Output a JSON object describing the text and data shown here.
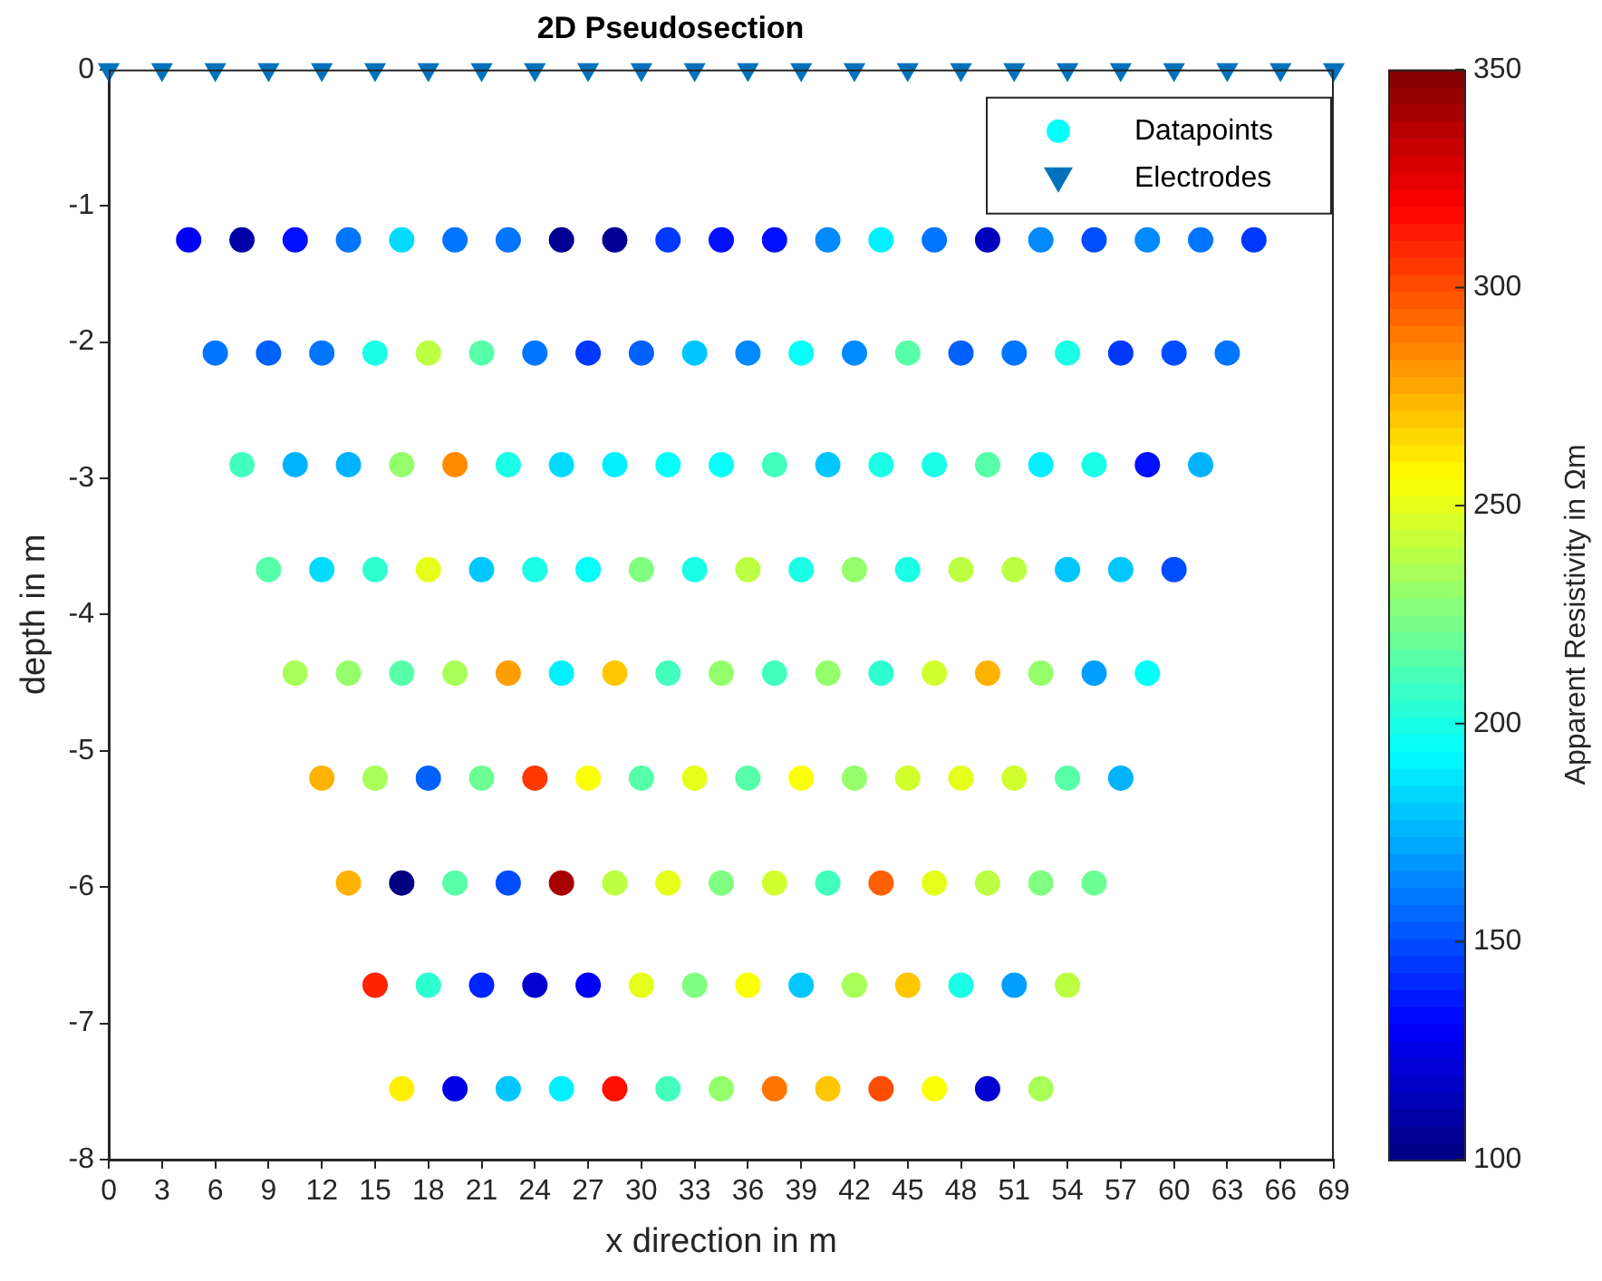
{
  "chart_data": {
    "type": "scatter",
    "title": "2D Pseudosection",
    "xlabel": "x direction in m",
    "ylabel": "depth in m",
    "clabel": "Apparent Resistivity in Ωm",
    "xlim": [
      0,
      69
    ],
    "xticks": [
      0,
      3,
      6,
      9,
      12,
      15,
      18,
      21,
      24,
      27,
      30,
      33,
      36,
      39,
      42,
      45,
      48,
      51,
      54,
      57,
      60,
      63,
      66,
      69
    ],
    "ylim": [
      -8,
      0
    ],
    "yticks": [
      -8,
      -7,
      -6,
      -5,
      -4,
      -3,
      -2,
      -1,
      0
    ],
    "clim": [
      100,
      350
    ],
    "cticks": [
      100,
      150,
      200,
      250,
      300,
      350
    ],
    "grid": false,
    "legend": "top right",
    "series": [
      {
        "name": "Datapoints",
        "type": "scatter",
        "marker": "circle",
        "color": "#00ffff",
        "colors": [
          "#0000fa",
          "#0000a8",
          "#000fff",
          "#0075ff",
          "#00dbff",
          "#0075ff",
          "#0075ff",
          "#000094",
          "#000094",
          "#0038ff",
          "#000fff",
          "#000fff",
          "#008aff",
          "#00f0ff",
          "#0075ff",
          "#0000bd",
          "#008aff",
          "#004dff",
          "#008aff",
          "#0075ff",
          "#0038ff",
          "#0075ff",
          "#0061ff",
          "#0075ff",
          "#1affe6",
          "#bdff42",
          "#57ffa8",
          "#0075ff",
          "#0038ff",
          "#0061ff",
          "#00c7ff",
          "#008aff",
          "#05fffa",
          "#008aff",
          "#57ffa8",
          "#0061ff",
          "#0075ff",
          "#1affe6",
          "#0038ff",
          "#004dff",
          "#0075ff",
          "#42ffbd",
          "#00b3ff",
          "#00b3ff",
          "#94ff6b",
          "#ff8a00",
          "#1affe6",
          "#00dbff",
          "#00f0ff",
          "#05fffa",
          "#05fffa",
          "#42ffbd",
          "#00c7ff",
          "#1affe6",
          "#1affe6",
          "#57ffa8",
          "#00f0ff",
          "#1affe6",
          "#000fff",
          "#00b3ff",
          "#57ffa8",
          "#00dbff",
          "#2effd1",
          "#e6ff1a",
          "#00c7ff",
          "#1affe6",
          "#05fffa",
          "#80ff80",
          "#1affe6",
          "#bdff42",
          "#1affe6",
          "#94ff6b",
          "#1affe6",
          "#bdff42",
          "#bdff42",
          "#00c7ff",
          "#00c7ff",
          "#004dff",
          "#a8ff57",
          "#94ff6b",
          "#57ffa8",
          "#a8ff57",
          "#ff9e00",
          "#00f0ff",
          "#ffc700",
          "#42ffbd",
          "#94ff6b",
          "#42ffbd",
          "#94ff6b",
          "#2effd1",
          "#d1ff2e",
          "#ffb300",
          "#94ff6b",
          "#009eff",
          "#05fffa",
          "#ffb300",
          "#a8ff57",
          "#0061ff",
          "#6bff94",
          "#ff3800",
          "#faff05",
          "#57ffa8",
          "#e6ff1a",
          "#57ffa8",
          "#faff05",
          "#94ff6b",
          "#d1ff2e",
          "#e6ff1a",
          "#d1ff2e",
          "#57ffa8",
          "#00b3ff",
          "#ffb300",
          "#000080",
          "#57ffa8",
          "#004dff",
          "#a80000",
          "#bdff42",
          "#e6ff1a",
          "#80ff80",
          "#d1ff2e",
          "#42ffbd",
          "#ff6100",
          "#e6ff1a",
          "#bdff42",
          "#80ff80",
          "#6bff94",
          "#ff2400",
          "#2effd1",
          "#0024ff",
          "#0000d1",
          "#0000fa",
          "#e6ff1a",
          "#80ff80",
          "#faff05",
          "#00c7ff",
          "#a8ff57",
          "#ffc700",
          "#1affe6",
          "#009eff",
          "#bdff42",
          "#fff000",
          "#0000e6",
          "#00c7ff",
          "#00f0ff",
          "#ff0f00",
          "#42ffbd",
          "#94ff6b",
          "#ff7500",
          "#ffc700",
          "#ff4d00",
          "#faff05",
          "#0000d1",
          "#a8ff57"
        ],
        "x": [
          4.5,
          7.5,
          10.5,
          13.5,
          16.5,
          19.5,
          22.5,
          25.5,
          28.5,
          31.5,
          34.5,
          37.5,
          40.5,
          43.5,
          46.5,
          49.5,
          52.5,
          55.5,
          58.5,
          61.5,
          64.5,
          6,
          9,
          12,
          15,
          18,
          21,
          24,
          27,
          30,
          33,
          36,
          39,
          42,
          45,
          48,
          51,
          54,
          57,
          60,
          63,
          7.5,
          10.5,
          13.5,
          16.5,
          19.5,
          22.5,
          25.5,
          28.5,
          31.5,
          34.5,
          37.5,
          40.5,
          43.5,
          46.5,
          49.5,
          52.5,
          55.5,
          58.5,
          61.5,
          9,
          12,
          15,
          18,
          21,
          24,
          27,
          30,
          33,
          36,
          39,
          42,
          45,
          48,
          51,
          54,
          57,
          60,
          10.5,
          13.5,
          16.5,
          19.5,
          22.5,
          25.5,
          28.5,
          31.5,
          34.5,
          37.5,
          40.5,
          43.5,
          46.5,
          49.5,
          52.5,
          55.5,
          58.5,
          12,
          15,
          18,
          21,
          24,
          27,
          30,
          33,
          36,
          39,
          42,
          45,
          48,
          51,
          54,
          57,
          13.5,
          16.5,
          19.5,
          22.5,
          25.5,
          28.5,
          31.5,
          34.5,
          37.5,
          40.5,
          43.5,
          46.5,
          49.5,
          52.5,
          55.5,
          15,
          18,
          21,
          24,
          27,
          30,
          33,
          36,
          39,
          42,
          45,
          48,
          51,
          54,
          16.5,
          19.5,
          22.5,
          25.5,
          28.5,
          31.5,
          34.5,
          37.5,
          40.5,
          43.5,
          46.5,
          49.5,
          52.5
        ],
        "values": [
          -1.25,
          -1.25,
          -1.25,
          -1.25,
          -1.25,
          -1.25,
          -1.25,
          -1.25,
          -1.25,
          -1.25,
          -1.25,
          -1.25,
          -1.25,
          -1.25,
          -1.25,
          -1.25,
          -1.25,
          -1.25,
          -1.25,
          -1.25,
          -1.25,
          -2.08,
          -2.08,
          -2.08,
          -2.08,
          -2.08,
          -2.08,
          -2.08,
          -2.08,
          -2.08,
          -2.08,
          -2.08,
          -2.08,
          -2.08,
          -2.08,
          -2.08,
          -2.08,
          -2.08,
          -2.08,
          -2.08,
          -2.08,
          -2.9,
          -2.9,
          -2.9,
          -2.9,
          -2.9,
          -2.9,
          -2.9,
          -2.9,
          -2.9,
          -2.9,
          -2.9,
          -2.9,
          -2.9,
          -2.9,
          -2.9,
          -2.9,
          -2.9,
          -2.9,
          -2.9,
          -3.67,
          -3.67,
          -3.67,
          -3.67,
          -3.67,
          -3.67,
          -3.67,
          -3.67,
          -3.67,
          -3.67,
          -3.67,
          -3.67,
          -3.67,
          -3.67,
          -3.67,
          -3.67,
          -3.67,
          -3.67,
          -4.43,
          -4.43,
          -4.43,
          -4.43,
          -4.43,
          -4.43,
          -4.43,
          -4.43,
          -4.43,
          -4.43,
          -4.43,
          -4.43,
          -4.43,
          -4.43,
          -4.43,
          -4.43,
          -4.43,
          -5.2,
          -5.2,
          -5.2,
          -5.2,
          -5.2,
          -5.2,
          -5.2,
          -5.2,
          -5.2,
          -5.2,
          -5.2,
          -5.2,
          -5.2,
          -5.2,
          -5.2,
          -5.2,
          -5.97,
          -5.97,
          -5.97,
          -5.97,
          -5.97,
          -5.97,
          -5.97,
          -5.97,
          -5.97,
          -5.97,
          -5.97,
          -5.97,
          -5.97,
          -5.97,
          -5.97,
          -6.72,
          -6.72,
          -6.72,
          -6.72,
          -6.72,
          -6.72,
          -6.72,
          -6.72,
          -6.72,
          -6.72,
          -6.72,
          -6.72,
          -6.72,
          -6.72,
          -7.48,
          -7.48,
          -7.48,
          -7.48,
          -7.48,
          -7.48,
          -7.48,
          -7.48,
          -7.48,
          -7.48,
          -7.48,
          -7.48,
          -7.48
        ],
        "cvalues": [
          130,
          110,
          135,
          160,
          185,
          160,
          160,
          105,
          105,
          145,
          135,
          135,
          165,
          190,
          160,
          115,
          165,
          150,
          165,
          160,
          145,
          160,
          155,
          160,
          200,
          240,
          215,
          160,
          145,
          155,
          180,
          165,
          195,
          165,
          215,
          155,
          160,
          200,
          145,
          150,
          160,
          210,
          175,
          175,
          230,
          285,
          200,
          185,
          190,
          195,
          195,
          210,
          180,
          200,
          200,
          215,
          190,
          200,
          135,
          175,
          215,
          185,
          205,
          250,
          180,
          200,
          195,
          225,
          200,
          240,
          200,
          230,
          200,
          240,
          240,
          180,
          180,
          150,
          235,
          230,
          215,
          235,
          280,
          190,
          270,
          210,
          230,
          210,
          230,
          205,
          245,
          275,
          230,
          170,
          195,
          275,
          235,
          155,
          220,
          305,
          255,
          215,
          250,
          215,
          255,
          230,
          245,
          250,
          245,
          215,
          175,
          275,
          100,
          215,
          150,
          340,
          240,
          250,
          225,
          245,
          210,
          295,
          250,
          240,
          225,
          220,
          310,
          205,
          140,
          120,
          130,
          250,
          225,
          255,
          180,
          235,
          270,
          200,
          170,
          240,
          260,
          125,
          180,
          190,
          315,
          210,
          230,
          290,
          270,
          300,
          255,
          120,
          235
        ]
      },
      {
        "name": "Electrodes",
        "type": "scatter",
        "marker": "triangle",
        "color": "#0072bd",
        "x": [
          0,
          3,
          6,
          9,
          12,
          15,
          18,
          21,
          24,
          27,
          30,
          33,
          36,
          39,
          42,
          45,
          48,
          51,
          54,
          57,
          60,
          63,
          66,
          69
        ],
        "values": [
          0,
          0,
          0,
          0,
          0,
          0,
          0,
          0,
          0,
          0,
          0,
          0,
          0,
          0,
          0,
          0,
          0,
          0,
          0,
          0,
          0,
          0,
          0,
          0
        ]
      }
    ]
  }
}
